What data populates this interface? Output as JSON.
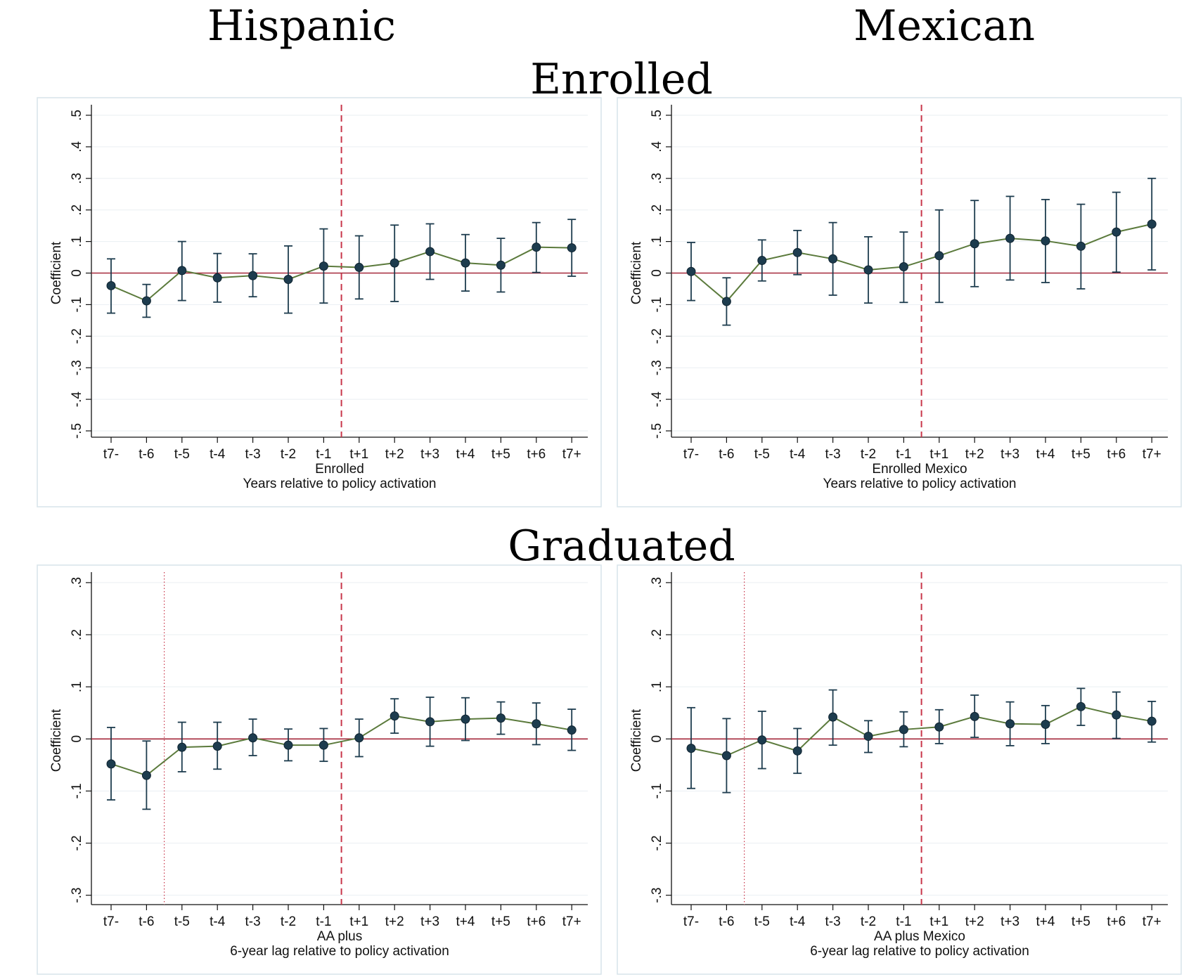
{
  "headings": {
    "hispanic": "Hispanic",
    "mexican": "Mexican",
    "enrolled": "Enrolled",
    "graduated": "Graduated"
  },
  "colors": {
    "series_line": "#5b7a3c",
    "marker": "#1d3c4e",
    "error_bar": "#1d3c4e",
    "zero_line": "#a5283b",
    "policy_line": "#c8364a",
    "grid": "#eaeff2",
    "panel_border": "#d7e4ea"
  },
  "chart_data": [
    {
      "id": "hispanic-enrolled",
      "type": "line",
      "categories": [
        "t7-",
        "t-6",
        "t-5",
        "t-4",
        "t-3",
        "t-2",
        "t-1",
        "t+1",
        "t+2",
        "t+3",
        "t+4",
        "t+5",
        "t+6",
        "t+7+"
      ],
      "category_labels": [
        "t7-",
        "t-6",
        "t-5",
        "t-4",
        "t-3",
        "t-2",
        "t-1",
        "t+1",
        "t+2",
        "t+3",
        "t+4",
        "t+5",
        "t+6",
        "t7+"
      ],
      "values": [
        -0.04,
        -0.088,
        0.008,
        -0.015,
        -0.008,
        -0.02,
        0.022,
        0.018,
        0.032,
        0.068,
        0.032,
        0.025,
        0.082,
        0.08
      ],
      "ci_low": [
        -0.127,
        -0.14,
        -0.087,
        -0.092,
        -0.075,
        -0.127,
        -0.095,
        -0.082,
        -0.09,
        -0.02,
        -0.057,
        -0.06,
        0.002,
        -0.01
      ],
      "ci_high": [
        0.045,
        -0.036,
        0.1,
        0.062,
        0.061,
        0.086,
        0.14,
        0.118,
        0.152,
        0.156,
        0.122,
        0.11,
        0.16,
        0.17
      ],
      "yticks": [
        -0.5,
        -0.4,
        -0.3,
        -0.2,
        -0.1,
        0,
        0.1,
        0.2,
        0.3,
        0.4,
        0.5
      ],
      "ytick_labels": [
        "-.5",
        "-.4",
        "-.3",
        "-.2",
        "-.1",
        "0",
        ".1",
        ".2",
        ".3",
        ".4",
        ".5"
      ],
      "ylim": [
        -0.52,
        0.52
      ],
      "ylabel": "Coefficient",
      "xlabel_line1": "Enrolled",
      "xlabel_line2": "Years relative to policy activation",
      "zero_line": 0,
      "policy_line_between": [
        "t-1",
        "t+1"
      ],
      "dotted_line_between": null,
      "grid": true
    },
    {
      "id": "mexican-enrolled",
      "type": "line",
      "categories": [
        "t7-",
        "t-6",
        "t-5",
        "t-4",
        "t-3",
        "t-2",
        "t-1",
        "t+1",
        "t+2",
        "t+3",
        "t+4",
        "t+5",
        "t+6",
        "t+7+"
      ],
      "category_labels": [
        "t7-",
        "t-6",
        "t-5",
        "t-4",
        "t-3",
        "t-2",
        "t-1",
        "t+1",
        "t+2",
        "t+3",
        "t+4",
        "t+5",
        "t+6",
        "t7+"
      ],
      "values": [
        0.005,
        -0.09,
        0.04,
        0.065,
        0.045,
        0.01,
        0.02,
        0.055,
        0.093,
        0.11,
        0.102,
        0.085,
        0.13,
        0.155
      ],
      "ci_low": [
        -0.087,
        -0.165,
        -0.025,
        -0.005,
        -0.07,
        -0.095,
        -0.093,
        -0.093,
        -0.043,
        -0.022,
        -0.03,
        -0.05,
        0.003,
        0.01
      ],
      "ci_high": [
        0.097,
        -0.015,
        0.105,
        0.135,
        0.16,
        0.115,
        0.13,
        0.2,
        0.23,
        0.243,
        0.233,
        0.218,
        0.256,
        0.3
      ],
      "yticks": [
        -0.5,
        -0.4,
        -0.3,
        -0.2,
        -0.1,
        0,
        0.1,
        0.2,
        0.3,
        0.4,
        0.5
      ],
      "ytick_labels": [
        "-.5",
        "-.4",
        "-.3",
        "-.2",
        "-.1",
        "0",
        ".1",
        ".2",
        ".3",
        ".4",
        ".5"
      ],
      "ylim": [
        -0.52,
        0.52
      ],
      "ylabel": "Coefficient",
      "xlabel_line1": "Enrolled Mexico",
      "xlabel_line2": "Years relative to policy activation",
      "zero_line": 0,
      "policy_line_between": [
        "t-1",
        "t+1"
      ],
      "dotted_line_between": null,
      "grid": true
    },
    {
      "id": "hispanic-graduated",
      "type": "line",
      "categories": [
        "t7-",
        "t-6",
        "t-5",
        "t-4",
        "t-3",
        "t-2",
        "t-1",
        "t+1",
        "t+2",
        "t+3",
        "t+4",
        "t+5",
        "t+6",
        "t+7+"
      ],
      "category_labels": [
        "t7-",
        "t-6",
        "t-5",
        "t-4",
        "t-3",
        "t-2",
        "t-1",
        "t+1",
        "t+2",
        "t+3",
        "t+4",
        "t+5",
        "t+6",
        "t7+"
      ],
      "values": [
        -0.048,
        -0.07,
        -0.016,
        -0.014,
        0.002,
        -0.012,
        -0.012,
        0.002,
        0.044,
        0.033,
        0.038,
        0.04,
        0.029,
        0.017
      ],
      "ci_low": [
        -0.117,
        -0.135,
        -0.063,
        -0.058,
        -0.032,
        -0.042,
        -0.043,
        -0.034,
        0.011,
        -0.014,
        -0.003,
        0.009,
        -0.011,
        -0.022
      ],
      "ci_high": [
        0.022,
        -0.004,
        0.032,
        0.032,
        0.038,
        0.019,
        0.02,
        0.038,
        0.077,
        0.08,
        0.079,
        0.071,
        0.069,
        0.057
      ],
      "yticks": [
        -0.3,
        -0.2,
        -0.1,
        0,
        0.1,
        0.2,
        0.3
      ],
      "ytick_labels": [
        "-.3",
        "-.2",
        "-.1",
        "0",
        ".1",
        ".2",
        ".3"
      ],
      "ylim": [
        -0.318,
        0.312
      ],
      "ylabel": "Coefficient",
      "xlabel_line1": "AA plus",
      "xlabel_line2": "6-year lag relative to policy activation",
      "zero_line": 0,
      "policy_line_between": [
        "t-1",
        "t+1"
      ],
      "dotted_line_between": [
        "t-6",
        "t-5"
      ],
      "grid": true
    },
    {
      "id": "mexican-graduated",
      "type": "line",
      "categories": [
        "t7-",
        "t-6",
        "t-5",
        "t-4",
        "t-3",
        "t-2",
        "t-1",
        "t+1",
        "t+2",
        "t+3",
        "t+4",
        "t+5",
        "t+6",
        "t+7+"
      ],
      "category_labels": [
        "t7-",
        "t-6",
        "t-5",
        "t-4",
        "t-3",
        "t-2",
        "t-1",
        "t+1",
        "t+2",
        "t+3",
        "t+4",
        "t+5",
        "t+6",
        "t7+"
      ],
      "values": [
        -0.018,
        -0.032,
        -0.002,
        -0.023,
        0.042,
        0.005,
        0.018,
        0.023,
        0.043,
        0.029,
        0.028,
        0.062,
        0.046,
        0.034
      ],
      "ci_low": [
        -0.095,
        -0.103,
        -0.057,
        -0.066,
        -0.012,
        -0.026,
        -0.015,
        -0.009,
        0.003,
        -0.013,
        -0.009,
        0.026,
        0.001,
        -0.006
      ],
      "ci_high": [
        0.06,
        0.039,
        0.053,
        0.02,
        0.094,
        0.035,
        0.052,
        0.056,
        0.084,
        0.071,
        0.064,
        0.097,
        0.09,
        0.072
      ],
      "yticks": [
        -0.3,
        -0.2,
        -0.1,
        0,
        0.1,
        0.2,
        0.3
      ],
      "ytick_labels": [
        "-.3",
        "-.2",
        "-.1",
        "0",
        ".1",
        ".2",
        ".3"
      ],
      "ylim": [
        -0.318,
        0.312
      ],
      "ylabel": "Coefficient",
      "xlabel_line1": "AA plus Mexico",
      "xlabel_line2": "6-year lag relative to policy activation",
      "zero_line": 0,
      "policy_line_between": [
        "t-1",
        "t+1"
      ],
      "dotted_line_between": [
        "t-6",
        "t-5"
      ],
      "grid": true
    }
  ]
}
